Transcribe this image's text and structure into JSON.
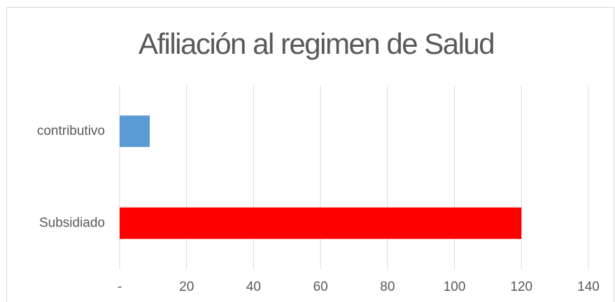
{
  "chart_data": {
    "type": "hbar",
    "title": "Afiliación al regimen de Salud",
    "categories": [
      "contributivo",
      "Subsidiado"
    ],
    "values": [
      9,
      120
    ],
    "colors": [
      "#5b9bd5",
      "#ff0000"
    ],
    "xlim": [
      0,
      140
    ],
    "xticks": [
      {
        "value": 0,
        "label": "-"
      },
      20,
      40,
      60,
      80,
      100,
      120,
      140
    ],
    "grid": true
  }
}
